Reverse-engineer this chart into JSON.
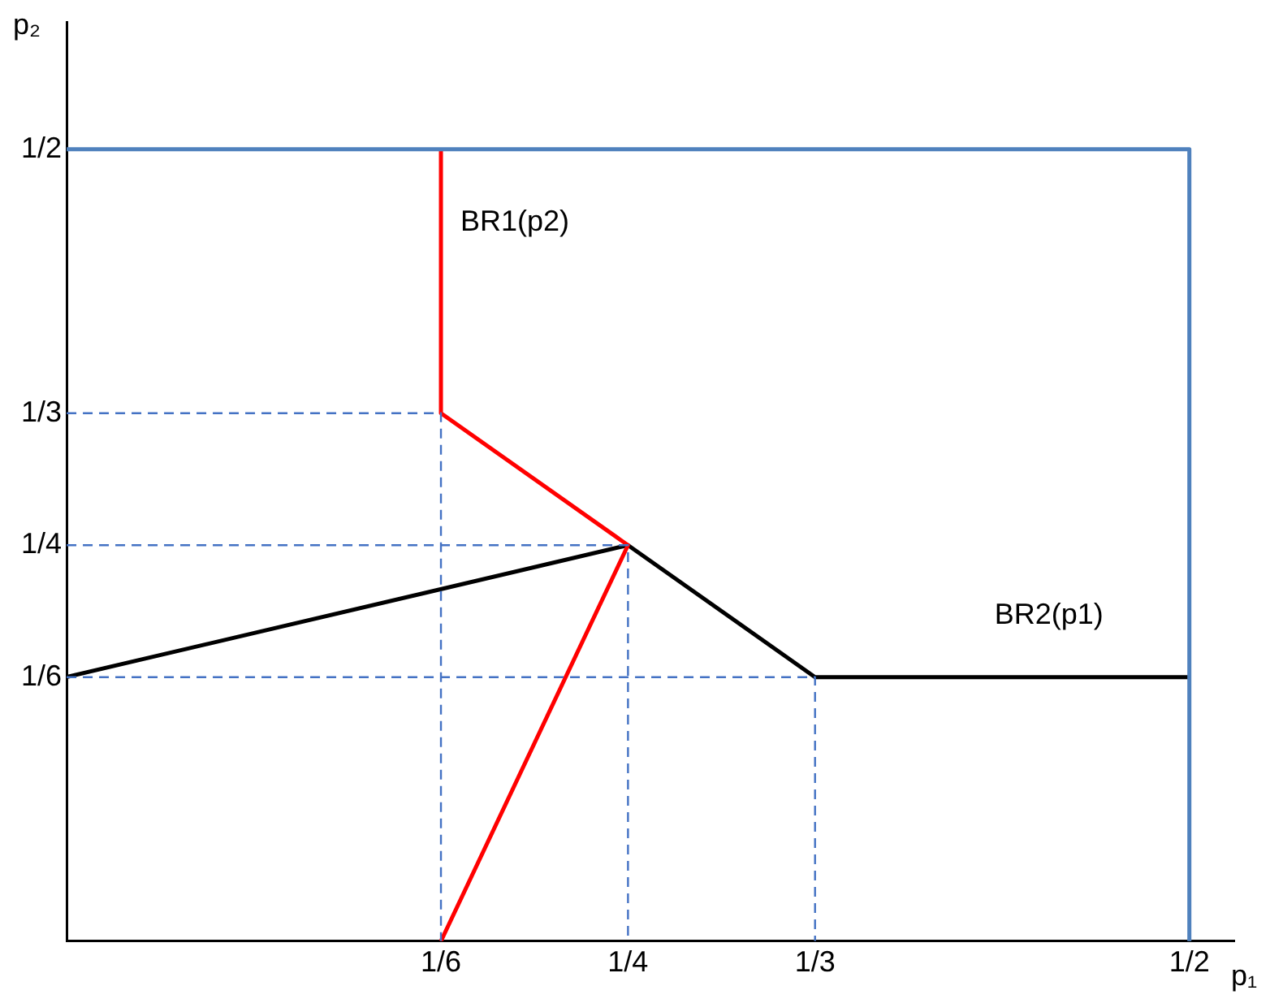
{
  "chart_data": {
    "type": "line",
    "xlabel": "p₁",
    "ylabel": "p₂",
    "xlim": [
      0,
      0.52
    ],
    "ylim": [
      0,
      0.58
    ],
    "xticks": [
      {
        "value": 0.1667,
        "label": "1/6"
      },
      {
        "value": 0.25,
        "label": "1/4"
      },
      {
        "value": 0.3333,
        "label": "1/3"
      },
      {
        "value": 0.5,
        "label": "1/2"
      }
    ],
    "yticks": [
      {
        "value": 0.1667,
        "label": "1/6"
      },
      {
        "value": 0.25,
        "label": "1/4"
      },
      {
        "value": 0.3333,
        "label": "1/3"
      },
      {
        "value": 0.5,
        "label": "1/2"
      }
    ],
    "grid": false,
    "legend": false,
    "marker": "none",
    "series": [
      {
        "color": "#4f81bd",
        "line_style": "solid",
        "x": [
          0,
          0.5,
          0.5
        ],
        "values": [
          0.5,
          0.5,
          0
        ]
      },
      {
        "color": "#4472c4",
        "line_style": "dashed",
        "x": [
          0,
          0.1667,
          0.1667
        ],
        "values": [
          0.3333,
          0.3333,
          0
        ]
      },
      {
        "color": "#4472c4",
        "line_style": "dashed",
        "x": [
          0,
          0.25,
          0.25
        ],
        "values": [
          0.25,
          0.25,
          0
        ]
      },
      {
        "color": "#4472c4",
        "line_style": "dashed",
        "x": [
          0,
          0.3333,
          0.3333
        ],
        "values": [
          0.1667,
          0.1667,
          0
        ]
      },
      {
        "name": "BR1(p2)",
        "color": "#ff0000",
        "line_style": "solid",
        "x": [
          0.1667,
          0.25,
          0.1667,
          0.1667
        ],
        "values": [
          0,
          0.25,
          0.3333,
          0.5
        ]
      },
      {
        "name": "BR2(p1)",
        "color": "#000000",
        "line_style": "solid",
        "x": [
          0,
          0.25,
          0.3333,
          0.5
        ],
        "values": [
          0.1667,
          0.25,
          0.1667,
          0.1667
        ]
      }
    ]
  }
}
